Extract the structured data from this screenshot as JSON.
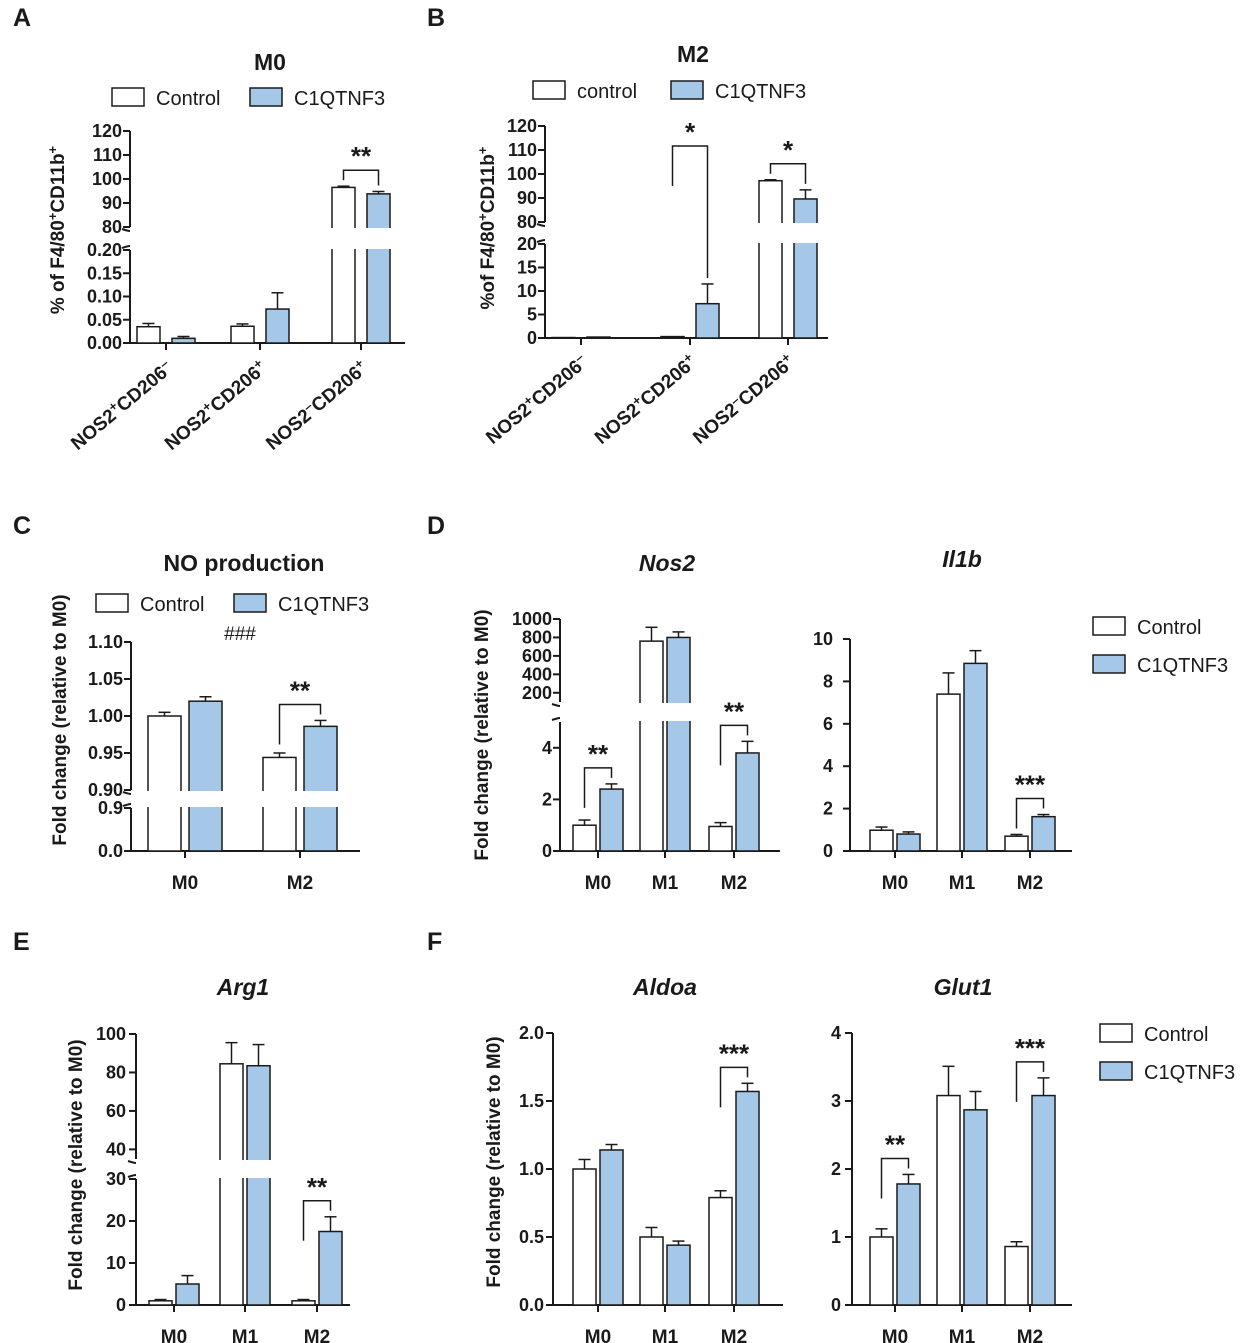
{
  "colors": {
    "control": "#ffffff",
    "c1qtnf3": "#a6c8e8",
    "ink": "#1a1a1a"
  },
  "chart_data": [
    {
      "id": "A",
      "panel_label": "A",
      "type": "bar",
      "title": "M0",
      "title_italic": false,
      "legend": [
        "Control",
        "C1QTNF3"
      ],
      "ylabel": "% of F4/80+CD11b+",
      "categories": [
        "NOS2+CD206-",
        "NOS2+CD206+",
        "NOS2-CD206+"
      ],
      "rotated_categories": true,
      "series": [
        {
          "name": "Control",
          "values": [
            0.035,
            0.036,
            96.5
          ],
          "errors": [
            0.007,
            0.005,
            0.5
          ]
        },
        {
          "name": "C1QTNF3",
          "values": [
            0.01,
            0.073,
            93.8
          ],
          "errors": [
            0.004,
            0.035,
            1.0
          ]
        }
      ],
      "axis_segments": [
        {
          "range": [
            0,
            0.2
          ],
          "ticks": [
            "0.00",
            "0.05",
            "0.10",
            "0.15",
            "0.20"
          ]
        },
        {
          "range": [
            80,
            120
          ],
          "ticks": [
            "80",
            "90",
            "100",
            "110",
            "120"
          ]
        }
      ],
      "significance": [
        {
          "category": 2,
          "label": "**"
        }
      ]
    },
    {
      "id": "B",
      "panel_label": "B",
      "type": "bar",
      "title": "M2",
      "title_italic": false,
      "legend": [
        "control",
        "C1QTNF3"
      ],
      "ylabel": "%of F4/80+CD11b+",
      "categories": [
        "NOS2+CD206-",
        "NOS2+CD206+",
        "NOS2-CD206+"
      ],
      "rotated_categories": true,
      "series": [
        {
          "name": "control",
          "values": [
            0.1,
            0.3,
            97.2
          ],
          "errors": [
            0,
            0,
            0.4
          ]
        },
        {
          "name": "C1QTNF3",
          "values": [
            0.2,
            7.3,
            89.6
          ],
          "errors": [
            0,
            4.2,
            3.8
          ]
        }
      ],
      "axis_segments": [
        {
          "range": [
            0,
            20
          ],
          "ticks": [
            "0",
            "5",
            "10",
            "15",
            "20"
          ]
        },
        {
          "range": [
            80,
            120
          ],
          "ticks": [
            "80",
            "90",
            "100",
            "110",
            "120"
          ]
        }
      ],
      "significance": [
        {
          "category": 1,
          "label": "*",
          "tall": true
        },
        {
          "category": 2,
          "label": "*"
        }
      ]
    },
    {
      "id": "C",
      "panel_label": "C",
      "type": "bar",
      "title": "NO production",
      "title_italic": false,
      "legend": [
        "Control",
        "C1QTNF3"
      ],
      "ylabel": "Fold change (relative to M0)",
      "categories": [
        "M0",
        "M2"
      ],
      "series": [
        {
          "name": "Control",
          "values": [
            1.0,
            0.944
          ],
          "errors": [
            0.005,
            0.006
          ]
        },
        {
          "name": "C1QTNF3",
          "values": [
            1.02,
            0.986
          ],
          "errors": [
            0.006,
            0.008
          ]
        }
      ],
      "axis_segments": [
        {
          "range": [
            0,
            0.9
          ],
          "ticks": [
            "0.0",
            "0.9"
          ]
        },
        {
          "range": [
            0.9,
            1.1
          ],
          "ticks": [
            "0.90",
            "0.95",
            "1.00",
            "1.05",
            "1.10"
          ]
        }
      ],
      "annotation": "###",
      "significance": [
        {
          "category": 1,
          "label": "**"
        }
      ]
    },
    {
      "id": "D-Nos2",
      "panel_label": "D",
      "type": "bar",
      "title": "Nos2",
      "title_italic": true,
      "ylabel": "Fold change (relative to M0)",
      "categories": [
        "M0",
        "M1",
        "M2"
      ],
      "series": [
        {
          "name": "Control",
          "values": [
            1.0,
            760,
            0.95
          ],
          "errors": [
            0.2,
            150,
            0.15
          ]
        },
        {
          "name": "C1QTNF3",
          "values": [
            2.4,
            800,
            3.8
          ],
          "errors": [
            0.2,
            60,
            0.45
          ]
        }
      ],
      "axis_segments": [
        {
          "range": [
            0,
            5
          ],
          "ticks": [
            "0",
            "2",
            "4"
          ]
        },
        {
          "range": [
            100,
            1000
          ],
          "ticks": [
            "200",
            "400",
            "600",
            "800",
            "1000"
          ]
        }
      ],
      "significance": [
        {
          "category": 0,
          "label": "**"
        },
        {
          "category": 2,
          "label": "**"
        }
      ]
    },
    {
      "id": "D-Il1b",
      "panel_label": "",
      "type": "bar",
      "title": "Il1b",
      "title_italic": true,
      "legend": [
        "Control",
        "C1QTNF3"
      ],
      "ylabel": "",
      "categories": [
        "M0",
        "M1",
        "M2"
      ],
      "series": [
        {
          "name": "Control",
          "values": [
            0.98,
            7.4,
            0.7
          ],
          "errors": [
            0.15,
            1.0,
            0.08
          ]
        },
        {
          "name": "C1QTNF3",
          "values": [
            0.8,
            8.85,
            1.62
          ],
          "errors": [
            0.1,
            0.6,
            0.1
          ]
        }
      ],
      "axis_segments": [
        {
          "range": [
            0,
            10
          ],
          "ticks": [
            "0",
            "2",
            "4",
            "6",
            "8",
            "10"
          ]
        }
      ],
      "significance": [
        {
          "category": 2,
          "label": "***"
        }
      ]
    },
    {
      "id": "E",
      "panel_label": "E",
      "type": "bar",
      "title": "Arg1",
      "title_italic": true,
      "ylabel": "Fold change (relative to M0)",
      "categories": [
        "M0",
        "M1",
        "M2"
      ],
      "series": [
        {
          "name": "Control",
          "values": [
            1.0,
            84.5,
            1.0
          ],
          "errors": [
            0.3,
            11,
            0.3
          ]
        },
        {
          "name": "C1QTNF3",
          "values": [
            5.0,
            83.5,
            17.5
          ],
          "errors": [
            2.0,
            11,
            3.5
          ]
        }
      ],
      "axis_segments": [
        {
          "range": [
            0,
            30
          ],
          "ticks": [
            "0",
            "10",
            "20",
            "30"
          ]
        },
        {
          "range": [
            35,
            100
          ],
          "ticks": [
            "40",
            "60",
            "80",
            "100"
          ]
        }
      ],
      "significance": [
        {
          "category": 2,
          "label": "**"
        }
      ]
    },
    {
      "id": "F-Aldoa",
      "panel_label": "F",
      "type": "bar",
      "title": "Aldoa",
      "title_italic": true,
      "ylabel": "Fold change (relative to M0)",
      "categories": [
        "M0",
        "M1",
        "M2"
      ],
      "series": [
        {
          "name": "Control",
          "values": [
            1.0,
            0.5,
            0.79
          ],
          "errors": [
            0.07,
            0.07,
            0.05
          ]
        },
        {
          "name": "C1QTNF3",
          "values": [
            1.14,
            0.44,
            1.57
          ],
          "errors": [
            0.04,
            0.03,
            0.06
          ]
        }
      ],
      "axis_segments": [
        {
          "range": [
            0,
            2.0
          ],
          "ticks": [
            "0.0",
            "0.5",
            "1.0",
            "1.5",
            "2.0"
          ]
        }
      ],
      "significance": [
        {
          "category": 2,
          "label": "***"
        }
      ]
    },
    {
      "id": "F-Glut1",
      "panel_label": "",
      "type": "bar",
      "title": "Glut1",
      "title_italic": true,
      "legend": [
        "Control",
        "C1QTNF3"
      ],
      "ylabel": "",
      "categories": [
        "M0",
        "M1",
        "M2"
      ],
      "series": [
        {
          "name": "Control",
          "values": [
            1.0,
            3.08,
            0.86
          ],
          "errors": [
            0.12,
            0.43,
            0.07
          ]
        },
        {
          "name": "C1QTNF3",
          "values": [
            1.78,
            2.87,
            3.08
          ],
          "errors": [
            0.14,
            0.27,
            0.26
          ]
        }
      ],
      "axis_segments": [
        {
          "range": [
            0,
            4
          ],
          "ticks": [
            "0",
            "1",
            "2",
            "3",
            "4"
          ]
        }
      ],
      "significance": [
        {
          "category": 0,
          "label": "**"
        },
        {
          "category": 2,
          "label": "***"
        }
      ]
    }
  ]
}
